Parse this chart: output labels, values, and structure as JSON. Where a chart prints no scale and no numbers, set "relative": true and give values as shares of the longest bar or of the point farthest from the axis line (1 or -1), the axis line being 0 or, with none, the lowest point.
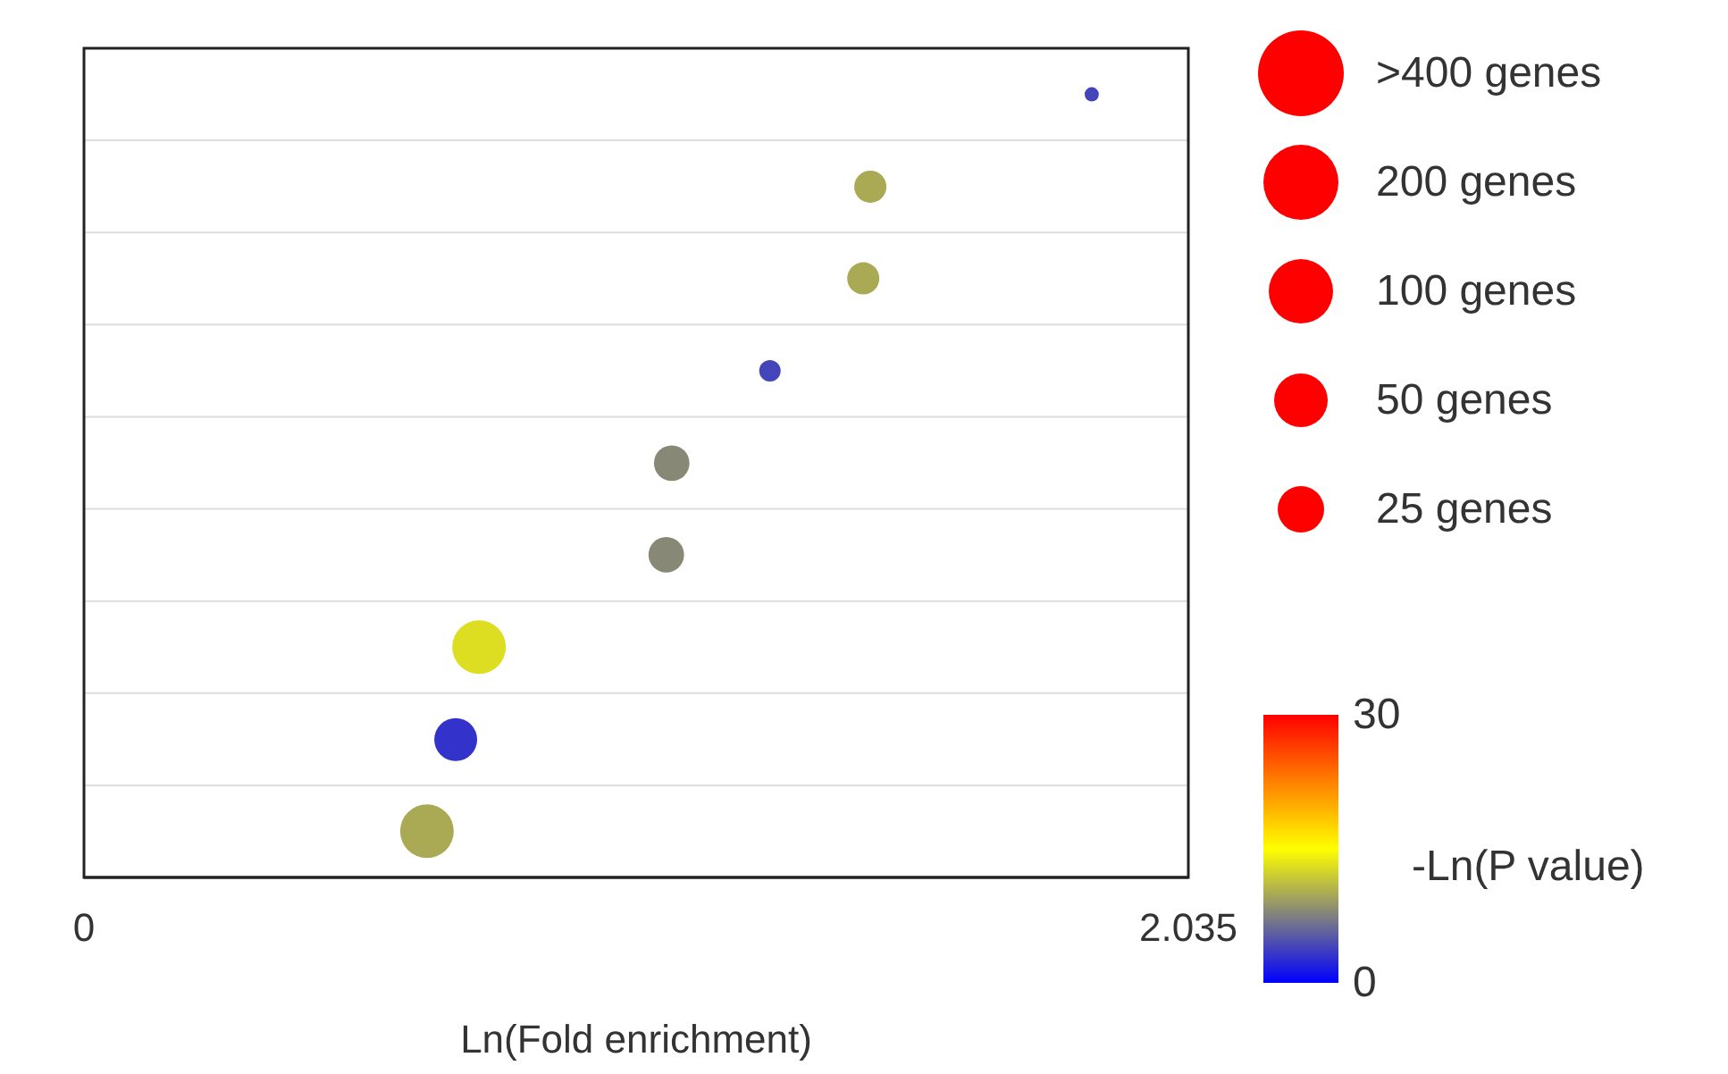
{
  "chart_data": {
    "type": "bubble",
    "relative": true,
    "xlabel": "Ln(Fold enrichment)",
    "clabel": "-Ln(P value)",
    "x": [
      1.857,
      1.449,
      1.436,
      1.264,
      1.083,
      1.073,
      0.728,
      0.685,
      0.632
    ],
    "values": [
      1,
      0.882,
      0.765,
      0.647,
      0.529,
      0.412,
      0.294,
      0.176,
      0.059
    ],
    "sizes": [
      0.07,
      0.36,
      0.36,
      0.16,
      0.44,
      0.44,
      1,
      0.64,
      1
    ],
    "cvalues": [
      4,
      10,
      10,
      4,
      8,
      8,
      13,
      3,
      10
    ],
    "xlim": [
      0,
      2.035
    ],
    "xticks": [
      0,
      2.035
    ],
    "clim": [
      0,
      30
    ],
    "cticks": [
      0,
      30
    ],
    "annotations": [
      ">400 genes",
      "200 genes",
      "100 genes",
      "50 genes",
      "25 genes"
    ],
    "grid": "y"
  }
}
